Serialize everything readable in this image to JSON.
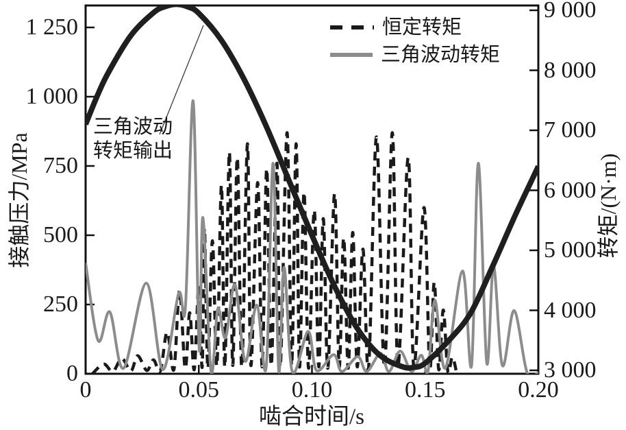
{
  "chart_data": {
    "type": "line",
    "title": "",
    "x_axis": {
      "label": "啮合时间/s",
      "range": [
        0,
        0.2
      ],
      "ticks": [
        0,
        0.05,
        0.1,
        0.15,
        0.2
      ],
      "tick_labels": [
        "0",
        "0.05",
        "0.10",
        "0.15",
        "0.20"
      ]
    },
    "y_axis_left": {
      "label": "接触压力/MPa",
      "range": [
        0,
        1250
      ],
      "ticks": [
        0,
        250,
        500,
        750,
        1000,
        1250
      ],
      "tick_labels": [
        "0",
        "250",
        "500",
        "750",
        "1 000",
        "1 250"
      ]
    },
    "y_axis_right": {
      "label": "转矩/(N·m)",
      "range": [
        3000,
        9000
      ],
      "ticks": [
        3000,
        4000,
        5000,
        6000,
        7000,
        8000,
        9000
      ],
      "tick_labels": [
        "3 000",
        "4 000",
        "5 000",
        "6 000",
        "7 000",
        "8 000",
        "9 000"
      ]
    },
    "grid": false,
    "legend": {
      "position": "top-right-inside",
      "entries": [
        {
          "label": "恒定转矩",
          "style": "dashed",
          "color": "#1a1a1a"
        },
        {
          "label": "三角波动转矩",
          "style": "solid",
          "color": "#8c8c8c"
        }
      ]
    },
    "annotation": {
      "text_lines": [
        "三角波动",
        "转矩输出"
      ],
      "points_to": "triangular-torque-output-curve",
      "leader_from_xy": [
        233,
        196
      ],
      "leader_to_xy": [
        297,
        37
      ]
    },
    "series": [
      {
        "name": "恒定转矩",
        "axis": "left",
        "style": "dashed",
        "color": "#1a1a1a",
        "width": 4.5,
        "points": [
          [
            0.003,
            0
          ],
          [
            0.008,
            35
          ],
          [
            0.012,
            8
          ],
          [
            0.016,
            55
          ],
          [
            0.02,
            10
          ],
          [
            0.023,
            65
          ],
          [
            0.027,
            12
          ],
          [
            0.03,
            50
          ],
          [
            0.033,
            10
          ],
          [
            0.036,
            150
          ],
          [
            0.039,
            15
          ],
          [
            0.0415,
            300
          ],
          [
            0.044,
            20
          ],
          [
            0.046,
            220
          ],
          [
            0.048,
            15
          ],
          [
            0.05,
            320
          ],
          [
            0.0515,
            25
          ],
          [
            0.0525,
            525
          ],
          [
            0.054,
            20
          ],
          [
            0.056,
            480
          ],
          [
            0.058,
            30
          ],
          [
            0.06,
            680
          ],
          [
            0.0615,
            25
          ],
          [
            0.0635,
            800
          ],
          [
            0.065,
            30
          ],
          [
            0.067,
            780
          ],
          [
            0.069,
            25
          ],
          [
            0.0715,
            830
          ],
          [
            0.073,
            30
          ],
          [
            0.076,
            690
          ],
          [
            0.078,
            25
          ],
          [
            0.08,
            740
          ],
          [
            0.082,
            30
          ],
          [
            0.0845,
            760
          ],
          [
            0.086,
            25
          ],
          [
            0.089,
            870
          ],
          [
            0.091,
            30
          ],
          [
            0.093,
            830
          ],
          [
            0.0945,
            25
          ],
          [
            0.0965,
            655
          ],
          [
            0.0985,
            20
          ],
          [
            0.101,
            590
          ],
          [
            0.103,
            25
          ],
          [
            0.105,
            560
          ],
          [
            0.107,
            20
          ],
          [
            0.11,
            650
          ],
          [
            0.112,
            25
          ],
          [
            0.114,
            490
          ],
          [
            0.116,
            20
          ],
          [
            0.118,
            510
          ],
          [
            0.12,
            25
          ],
          [
            0.1225,
            450
          ],
          [
            0.125,
            20
          ],
          [
            0.1285,
            855
          ],
          [
            0.132,
            25
          ],
          [
            0.1355,
            870
          ],
          [
            0.138,
            30
          ],
          [
            0.1425,
            780
          ],
          [
            0.145,
            25
          ],
          [
            0.1495,
            600
          ],
          [
            0.152,
            20
          ],
          [
            0.154,
            330
          ],
          [
            0.156,
            15
          ],
          [
            0.158,
            230
          ],
          [
            0.16,
            10
          ],
          [
            0.162,
            60
          ],
          [
            0.164,
            0
          ]
        ]
      },
      {
        "name": "三角波动转矩",
        "axis": "left",
        "style": "solid",
        "color": "#8c8c8c",
        "width": 4,
        "points": [
          [
            0,
            400
          ],
          [
            0.0055,
            120
          ],
          [
            0.0107,
            223
          ],
          [
            0.0168,
            20
          ],
          [
            0.0268,
            327
          ],
          [
            0.0341,
            15
          ],
          [
            0.0411,
            290
          ],
          [
            0.0441,
            243
          ],
          [
            0.0475,
            985
          ],
          [
            0.0502,
            87
          ],
          [
            0.0518,
            564
          ],
          [
            0.0554,
            8
          ],
          [
            0.0584,
            235
          ],
          [
            0.0618,
            130
          ],
          [
            0.066,
            322
          ],
          [
            0.0705,
            45
          ],
          [
            0.0756,
            248
          ],
          [
            0.0798,
            25
          ],
          [
            0.0828,
            760
          ],
          [
            0.0853,
            12
          ],
          [
            0.0877,
            384
          ],
          [
            0.0913,
            8
          ],
          [
            0.0983,
            153
          ],
          [
            0.102,
            12
          ],
          [
            0.1096,
            69
          ],
          [
            0.1132,
            8
          ],
          [
            0.1202,
            62
          ],
          [
            0.1242,
            8
          ],
          [
            0.1303,
            74
          ],
          [
            0.134,
            8
          ],
          [
            0.139,
            82
          ],
          [
            0.144,
            8
          ],
          [
            0.1483,
            67
          ],
          [
            0.1513,
            10
          ],
          [
            0.1543,
            265
          ],
          [
            0.1589,
            20
          ],
          [
            0.1665,
            371
          ],
          [
            0.1705,
            30
          ],
          [
            0.1735,
            760
          ],
          [
            0.1772,
            40
          ],
          [
            0.1802,
            389
          ],
          [
            0.1841,
            30
          ],
          [
            0.1893,
            228
          ],
          [
            0.195,
            5
          ],
          [
            0.2,
            3
          ]
        ]
      },
      {
        "name": "三角波动转矩输出",
        "axis": "right",
        "style": "solid",
        "color": "#1f1f1f",
        "width": 8,
        "points": [
          [
            0,
            7100
          ],
          [
            0.005,
            7560
          ],
          [
            0.01,
            7960
          ],
          [
            0.02,
            8580
          ],
          [
            0.03,
            8960
          ],
          [
            0.035,
            9060
          ],
          [
            0.04,
            9100
          ],
          [
            0.045,
            9060
          ],
          [
            0.05,
            8950
          ],
          [
            0.06,
            8500
          ],
          [
            0.07,
            7850
          ],
          [
            0.08,
            7050
          ],
          [
            0.09,
            6150
          ],
          [
            0.1,
            5250
          ],
          [
            0.11,
            4400
          ],
          [
            0.12,
            3700
          ],
          [
            0.13,
            3250
          ],
          [
            0.14,
            3060
          ],
          [
            0.145,
            3050
          ],
          [
            0.15,
            3120
          ],
          [
            0.16,
            3480
          ],
          [
            0.17,
            3950
          ],
          [
            0.18,
            4750
          ],
          [
            0.19,
            5600
          ],
          [
            0.2,
            6400
          ]
        ]
      }
    ]
  }
}
